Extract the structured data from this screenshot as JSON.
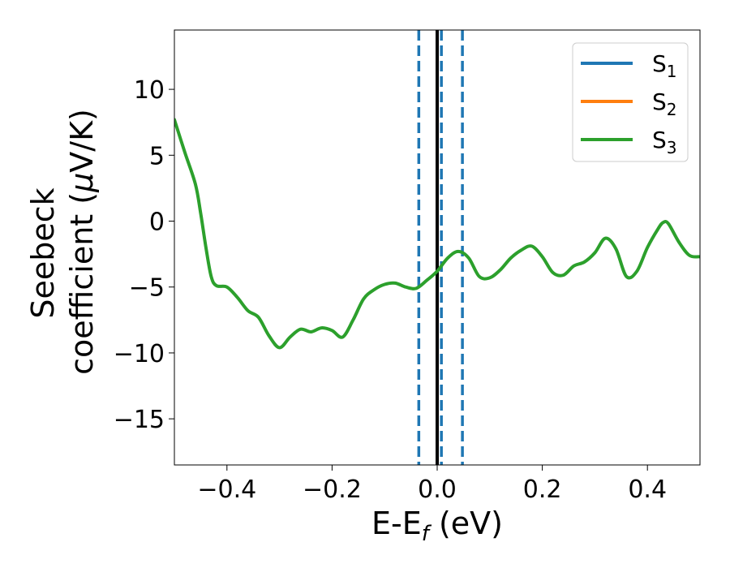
{
  "chart_data": {
    "type": "line",
    "xlabel": {
      "main": "E-E",
      "sub": "f",
      "tail": " (eV)"
    },
    "ylabel": {
      "line1": "Seebeck",
      "line2_pre": "coefficient  (",
      "mu": "μ",
      "line2_post": "V/K)"
    },
    "xlim": [
      -0.5,
      0.5
    ],
    "ylim": [
      -18.5,
      14.5
    ],
    "xticks": [
      -0.4,
      -0.2,
      0.0,
      0.2,
      0.4
    ],
    "xtick_labels": [
      "−0.4",
      "−0.2",
      "0.0",
      "0.2",
      "0.4"
    ],
    "yticks": [
      10,
      5,
      0,
      -5,
      -10,
      -15
    ],
    "ytick_labels": [
      "10",
      "5",
      "0",
      "−5",
      "−10",
      "−15"
    ],
    "grid": false,
    "legend_position": "top-right",
    "series": [
      {
        "name": "S",
        "sub": "1",
        "color": "#1f77b4",
        "x": [],
        "y": []
      },
      {
        "name": "S",
        "sub": "2",
        "color": "#ff7f0e",
        "x": [],
        "y": []
      },
      {
        "name": "S",
        "sub": "3",
        "color": "#2ca02c",
        "x": [
          -0.5,
          -0.48,
          -0.46,
          -0.45,
          -0.44,
          -0.43,
          -0.42,
          -0.4,
          -0.38,
          -0.36,
          -0.34,
          -0.32,
          -0.3,
          -0.28,
          -0.26,
          -0.24,
          -0.22,
          -0.2,
          -0.18,
          -0.16,
          -0.14,
          -0.12,
          -0.1,
          -0.08,
          -0.06,
          -0.04,
          -0.02,
          0.0,
          0.02,
          0.04,
          0.06,
          0.08,
          0.1,
          0.12,
          0.14,
          0.16,
          0.18,
          0.2,
          0.22,
          0.24,
          0.26,
          0.28,
          0.3,
          0.32,
          0.34,
          0.36,
          0.38,
          0.4,
          0.42,
          0.43,
          0.44,
          0.46,
          0.48,
          0.5
        ],
        "y": [
          7.7,
          5.2,
          2.8,
          0.6,
          -2.0,
          -4.2,
          -4.9,
          -5.0,
          -5.8,
          -6.8,
          -7.3,
          -8.7,
          -9.6,
          -8.8,
          -8.2,
          -8.4,
          -8.1,
          -8.3,
          -8.8,
          -7.5,
          -5.9,
          -5.2,
          -4.8,
          -4.7,
          -5.0,
          -5.1,
          -4.5,
          -3.8,
          -2.8,
          -2.3,
          -2.8,
          -4.2,
          -4.3,
          -3.7,
          -2.8,
          -2.2,
          -1.9,
          -2.7,
          -3.9,
          -4.1,
          -3.4,
          -3.1,
          -2.4,
          -1.3,
          -2.1,
          -4.2,
          -3.8,
          -2.0,
          -0.6,
          -0.1,
          -0.2,
          -1.6,
          -2.6,
          -2.7
        ]
      }
    ],
    "vlines": [
      {
        "x": 0.0,
        "color": "#000000",
        "style": "solid"
      },
      {
        "x": -0.035,
        "color": "#1f77b4",
        "style": "dashed"
      },
      {
        "x": 0.008,
        "color": "#1f77b4",
        "style": "dashed"
      },
      {
        "x": 0.048,
        "color": "#1f77b4",
        "style": "dashed"
      }
    ]
  }
}
